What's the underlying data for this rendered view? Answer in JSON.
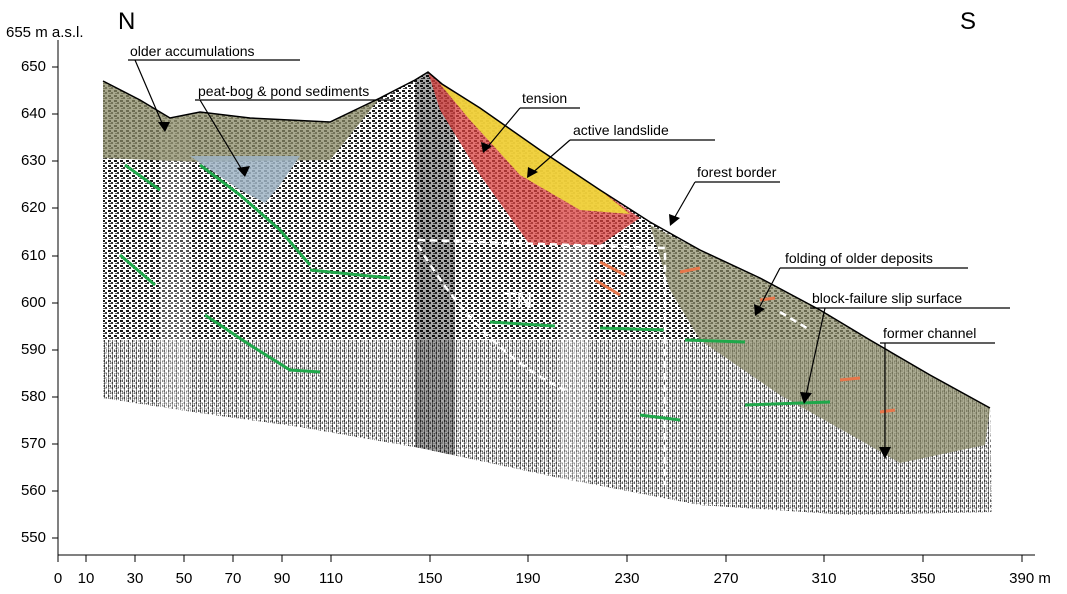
{
  "directions": {
    "left": "N",
    "right": "S"
  },
  "y_axis": {
    "top_label": "655 m a.s.l.",
    "ticks": [
      "650",
      "640",
      "630",
      "620",
      "610",
      "600",
      "590",
      "580",
      "570",
      "560",
      "550"
    ]
  },
  "x_axis": {
    "ticks": [
      "0",
      "10",
      "30",
      "50",
      "70",
      "90",
      "110",
      "150",
      "190",
      "230",
      "270",
      "310",
      "350",
      "390 m"
    ]
  },
  "annotations": {
    "older_accumulations": "older accumulations",
    "peat_bog": "peat-bog & pond sediments",
    "tension": "tension",
    "active_landslide": "active landslide",
    "forest_border": "forest border",
    "folding": "folding of older deposits",
    "block_failure": "block-failure slip surface",
    "former_channel": "former channel",
    "tn": "TN"
  },
  "colors": {
    "older_accumulations": "#8a8a66",
    "peat_bog": "#9fb4c4",
    "tension": "#d8403f",
    "active_landslide": "#f2e23a",
    "reflector_green": "#1fa84a",
    "orange_marks": "#e8764a"
  }
}
